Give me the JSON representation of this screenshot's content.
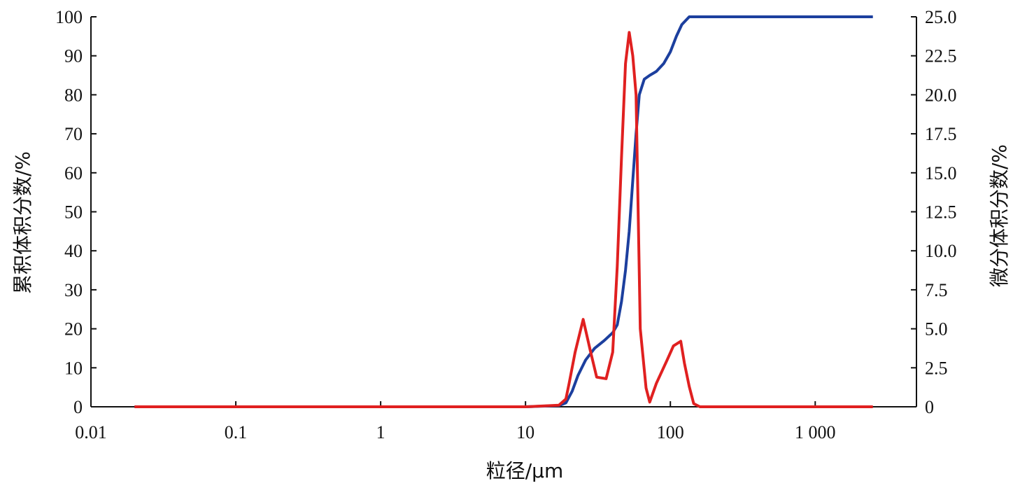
{
  "chart_data": {
    "type": "line",
    "xlabel": "粒径/μm",
    "ylabel_left": "累积体积分数/%",
    "ylabel_right": "微分体积分数/%",
    "x_scale": "log",
    "xlim": [
      0.01,
      5000
    ],
    "x_ticks": [
      {
        "value": 0.01,
        "label": "0.01"
      },
      {
        "value": 0.1,
        "label": "0.1"
      },
      {
        "value": 1,
        "label": "1"
      },
      {
        "value": 10,
        "label": "10"
      },
      {
        "value": 100,
        "label": "100"
      },
      {
        "value": 1000,
        "label": "1 000"
      }
    ],
    "ylim_left": [
      0,
      100
    ],
    "y_ticks_left": [
      "0",
      "10",
      "20",
      "30",
      "40",
      "50",
      "60",
      "70",
      "80",
      "90",
      "100"
    ],
    "ylim_right": [
      0,
      25
    ],
    "y_ticks_right": [
      "0",
      "2.5",
      "5.0",
      "7.5",
      "10.0",
      "12.5",
      "15.0",
      "17.5",
      "20.0",
      "22.5",
      "25.0"
    ],
    "grid": false,
    "series": [
      {
        "axis": "left",
        "color": "#1c3f9e",
        "points": [
          [
            0.02,
            0
          ],
          [
            1,
            0
          ],
          [
            10,
            0
          ],
          [
            17,
            0.3
          ],
          [
            19,
            1
          ],
          [
            21,
            4
          ],
          [
            23,
            8
          ],
          [
            26,
            12
          ],
          [
            30,
            15
          ],
          [
            35,
            17
          ],
          [
            40,
            19
          ],
          [
            43,
            21
          ],
          [
            46,
            27
          ],
          [
            49,
            35
          ],
          [
            52,
            45
          ],
          [
            55,
            58
          ],
          [
            58,
            70
          ],
          [
            61,
            80
          ],
          [
            66,
            84
          ],
          [
            72,
            85
          ],
          [
            80,
            86
          ],
          [
            90,
            88
          ],
          [
            100,
            91
          ],
          [
            110,
            95
          ],
          [
            120,
            98
          ],
          [
            135,
            100
          ],
          [
            150,
            100
          ],
          [
            2500,
            100
          ]
        ]
      },
      {
        "axis": "right",
        "color": "#e02020",
        "points": [
          [
            0.02,
            0
          ],
          [
            7,
            0
          ],
          [
            10,
            0
          ],
          [
            17,
            0.1
          ],
          [
            19,
            0.5
          ],
          [
            20,
            1.5
          ],
          [
            22,
            3.5
          ],
          [
            25,
            5.6
          ],
          [
            28,
            3.6
          ],
          [
            31,
            1.9
          ],
          [
            36,
            1.8
          ],
          [
            40,
            3.5
          ],
          [
            43,
            9
          ],
          [
            46,
            16
          ],
          [
            49,
            22
          ],
          [
            52,
            24
          ],
          [
            55,
            22.5
          ],
          [
            58,
            20
          ],
          [
            62,
            5
          ],
          [
            68,
            1.2
          ],
          [
            72,
            0.3
          ],
          [
            80,
            1.5
          ],
          [
            95,
            3
          ],
          [
            105,
            3.9
          ],
          [
            118,
            4.2
          ],
          [
            125,
            2.8
          ],
          [
            135,
            1.3
          ],
          [
            145,
            0.2
          ],
          [
            160,
            0
          ],
          [
            2500,
            0
          ]
        ]
      }
    ]
  }
}
